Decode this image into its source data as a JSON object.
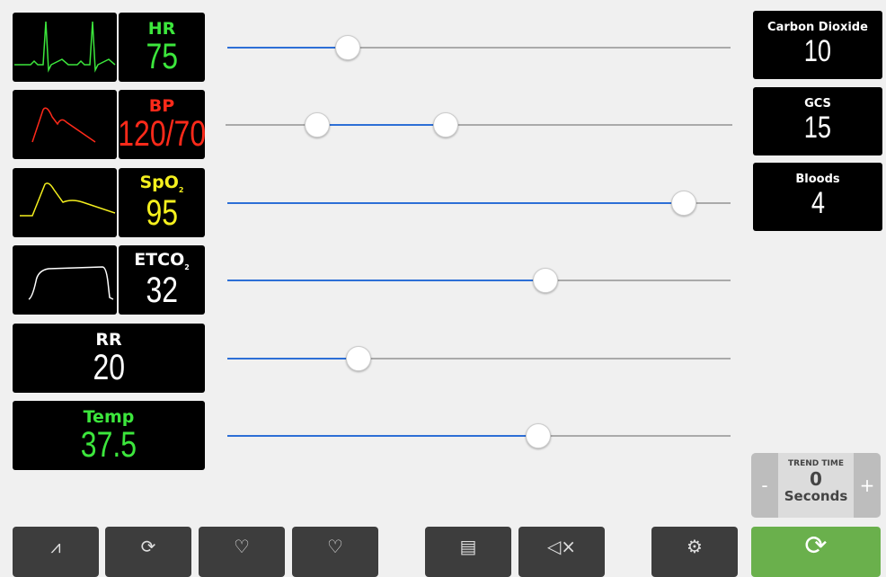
{
  "vitals": [
    {
      "label": "HR",
      "value": "75",
      "color": "#3ce63c",
      "wave": "ecg"
    },
    {
      "label": "BP",
      "value": "120/70",
      "color": "#ff2a1a",
      "wave": "arterial"
    },
    {
      "label": "SpO",
      "sub": "2",
      "value": "95",
      "color": "#f5f01e",
      "wave": "pleth"
    },
    {
      "label": "ETCO",
      "sub": "2",
      "value": "32",
      "color": "#ffffff",
      "wave": "capno"
    },
    {
      "label": "RR",
      "value": "20",
      "color": "#ffffff"
    },
    {
      "label": "Temp",
      "value": "37.5",
      "color": "#3ce63c"
    }
  ],
  "sliders": [
    {
      "value": 0.24
    },
    {
      "low": 0.18,
      "high": 0.435
    },
    {
      "value": 0.907
    },
    {
      "value": 0.632
    },
    {
      "value": 0.261
    },
    {
      "value": 0.618
    }
  ],
  "right": [
    {
      "label": "Carbon Dioxide",
      "value": "10"
    },
    {
      "label": "GCS",
      "value": "15"
    },
    {
      "label": "Bloods",
      "value": "4"
    }
  ],
  "trend": {
    "title": "TREND TIME",
    "value": "0",
    "unit": "Seconds",
    "minus": "-",
    "plus": "+"
  },
  "toolbar": [
    {
      "icon": "waveform-icon"
    },
    {
      "icon": "cycle-icon"
    },
    {
      "icon": "heart-shock-icon"
    },
    {
      "icon": "heart-pulse-icon"
    },
    {
      "icon": "clipboard-icon"
    },
    {
      "icon": "mute-icon"
    },
    {
      "icon": "gear-icon"
    },
    {
      "icon": "refresh-icon"
    }
  ],
  "colors": {
    "accent": "#2d6fd6",
    "go": "#6ab04c"
  }
}
